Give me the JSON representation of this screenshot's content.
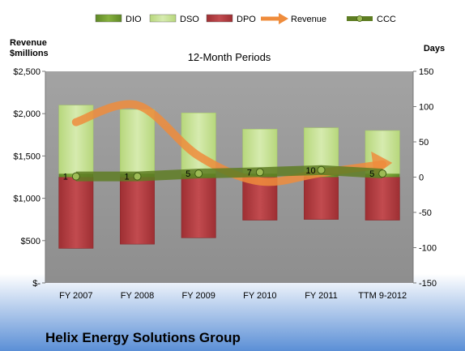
{
  "colors": {
    "dio": "#6f9a2e",
    "dso": "#c9e39a",
    "dpo": "#b53a3e",
    "revenue": "#ef8c3c",
    "ccc": "#5e7d23",
    "plot_bg": "#9a9a9a"
  },
  "chart_data": {
    "type": "bar",
    "title": "12-Month Periods",
    "footer_title": "Helix Energy Solutions Group",
    "left_axis": {
      "label_line1": "Revenue",
      "label_line2": "$millions",
      "range": [
        0,
        2500
      ],
      "ticks": [
        0,
        500,
        1000,
        1500,
        2000,
        2500
      ],
      "tick_labels": [
        "$-",
        "$500",
        "$1,000",
        "$1,500",
        "$2,000",
        "$2,500"
      ]
    },
    "right_axis": {
      "label": "Days",
      "range": [
        -150,
        150
      ],
      "ticks": [
        -150,
        -100,
        -50,
        0,
        50,
        100,
        150
      ],
      "tick_labels": [
        "-150",
        "-100",
        "-50",
        "0",
        "50",
        "100",
        "150"
      ]
    },
    "categories": [
      "FY 2007",
      "FY 2008",
      "FY 2009",
      "FY 2010",
      "FY 2011",
      "TTM 9-2012"
    ],
    "legend": [
      {
        "key": "dio",
        "label": "DIO",
        "kind": "bar"
      },
      {
        "key": "dso",
        "label": "DSO",
        "kind": "bar"
      },
      {
        "key": "dpo",
        "label": "DPO",
        "kind": "bar"
      },
      {
        "key": "revenue",
        "label": "Revenue",
        "kind": "arrow"
      },
      {
        "key": "ccc",
        "label": "CCC",
        "kind": "line"
      }
    ],
    "series": [
      {
        "name": "DIO",
        "axis": "days",
        "values": [
          5,
          5,
          5,
          5,
          5,
          5
        ]
      },
      {
        "name": "DSO",
        "axis": "days",
        "values": [
          97,
          91,
          86,
          63,
          65,
          61
        ]
      },
      {
        "name": "DPO",
        "axis": "days",
        "values": [
          -101,
          -95,
          -86,
          -61,
          -60,
          -61
        ]
      },
      {
        "name": "Revenue",
        "axis": "revenue",
        "values": [
          1900,
          2100,
          1500,
          1200,
          1300,
          1400
        ]
      },
      {
        "name": "CCC",
        "axis": "days",
        "values": [
          1,
          1,
          5,
          7,
          10,
          5
        ]
      }
    ],
    "ccc_labels": [
      "1",
      "1",
      "5",
      "7",
      "10",
      "5"
    ],
    "grid": false,
    "legend_position": "top"
  }
}
